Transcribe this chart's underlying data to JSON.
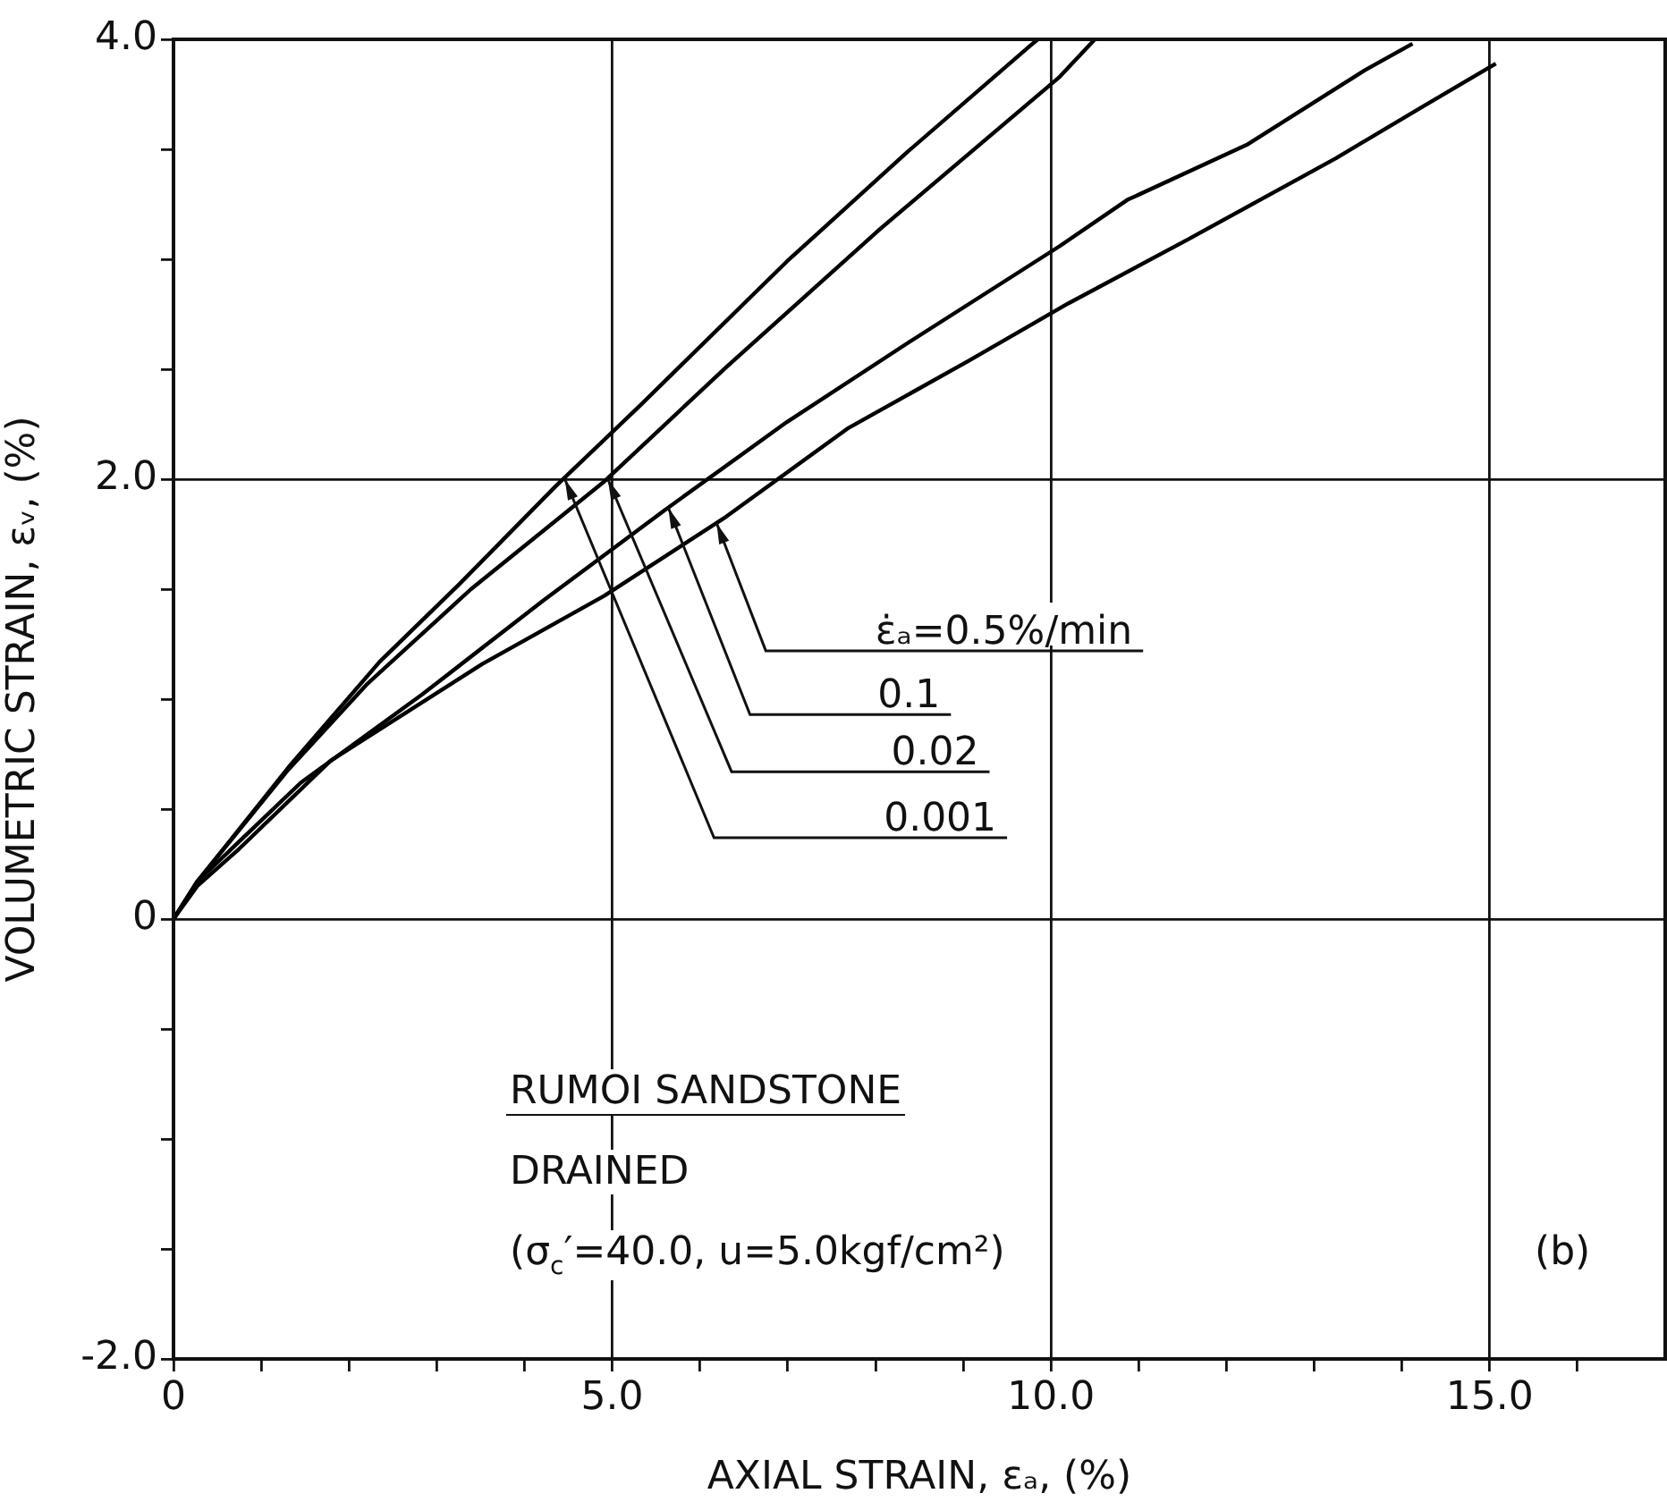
{
  "chart_data": {
    "type": "line",
    "xlabel": "AXIAL STRAIN, εₐ, (%)",
    "ylabel": "VOLUMETRIC STRAIN, εᵥ, (%)",
    "xlim": [
      0,
      17
    ],
    "ylim": [
      -2,
      4
    ],
    "xticks": [
      {
        "value": 0,
        "label": "0"
      },
      {
        "value": 1,
        "label": null
      },
      {
        "value": 2,
        "label": null
      },
      {
        "value": 3,
        "label": null
      },
      {
        "value": 4,
        "label": null
      },
      {
        "value": 5,
        "label": "5.0"
      },
      {
        "value": 6,
        "label": null
      },
      {
        "value": 7,
        "label": null
      },
      {
        "value": 8,
        "label": null
      },
      {
        "value": 9,
        "label": null
      },
      {
        "value": 10,
        "label": "10.0"
      },
      {
        "value": 11,
        "label": null
      },
      {
        "value": 12,
        "label": null
      },
      {
        "value": 13,
        "label": null
      },
      {
        "value": 14,
        "label": null
      },
      {
        "value": 15,
        "label": "15.0"
      },
      {
        "value": 16,
        "label": null
      }
    ],
    "yticks": [
      {
        "value": -2,
        "label": "-2.0"
      },
      {
        "value": -1.5,
        "label": null
      },
      {
        "value": -1,
        "label": null
      },
      {
        "value": -0.5,
        "label": null
      },
      {
        "value": 0,
        "label": "0"
      },
      {
        "value": 0.5,
        "label": null
      },
      {
        "value": 1,
        "label": null
      },
      {
        "value": 1.5,
        "label": null
      },
      {
        "value": 2,
        "label": "2.0"
      },
      {
        "value": 2.5,
        "label": null
      },
      {
        "value": 3,
        "label": null
      },
      {
        "value": 3.5,
        "label": null
      },
      {
        "value": 4,
        "label": "4.0"
      }
    ],
    "grid": true,
    "legend": false,
    "marker": "none",
    "line_style": "solid",
    "series": [
      {
        "color": "#000000",
        "x": [
          0,
          0.27,
          1.31,
          2.35,
          3.25,
          4.36,
          5.33,
          6.99,
          8.37,
          9.76,
          9.85
        ],
        "values": [
          0,
          0.17,
          0.69,
          1.17,
          1.52,
          1.97,
          2.34,
          2.99,
          3.49,
          3.97,
          4.0
        ]
      },
      {
        "color": "#000000",
        "x": [
          0,
          0.27,
          1.31,
          2.21,
          3.39,
          4.91,
          6.3,
          8.03,
          10.1,
          10.5
        ],
        "values": [
          0,
          0.17,
          0.68,
          1.07,
          1.5,
          1.99,
          2.51,
          3.13,
          3.83,
          4.0
        ]
      },
      {
        "color": "#000000",
        "x": [
          0,
          0.27,
          1.45,
          2.83,
          4.22,
          5.6,
          6.99,
          8.37,
          10.1,
          10.87,
          12.23,
          13.58,
          14.12
        ],
        "values": [
          0,
          0.17,
          0.62,
          1.02,
          1.45,
          1.86,
          2.26,
          2.62,
          3.06,
          3.27,
          3.52,
          3.86,
          3.98
        ]
      },
      {
        "color": "#000000",
        "x": [
          0,
          0.27,
          0.75,
          1.79,
          3.52,
          4.91,
          6.3,
          7.68,
          9.07,
          10.2,
          11.56,
          13.25,
          14.26,
          15.07
        ],
        "values": [
          0,
          0.15,
          0.32,
          0.72,
          1.16,
          1.47,
          1.83,
          2.23,
          2.54,
          2.8,
          3.09,
          3.46,
          3.7,
          3.89
        ]
      }
    ],
    "annotations": [
      {
        "text": "0.001",
        "x": 4.46,
        "y": 2.0
      },
      {
        "text": "0.02",
        "x": 4.95,
        "y": 2.0
      },
      {
        "text": "0.1",
        "x": 5.64,
        "y": 1.87
      },
      {
        "text": "ε̇ₐ=0.5%/min",
        "x": 6.19,
        "y": 1.8
      },
      "RUMOI SANDSTONE",
      "DRAINED",
      "(σ$_{c}$′=40.0, u=5.0kgf/cm²)",
      "(b)"
    ]
  }
}
